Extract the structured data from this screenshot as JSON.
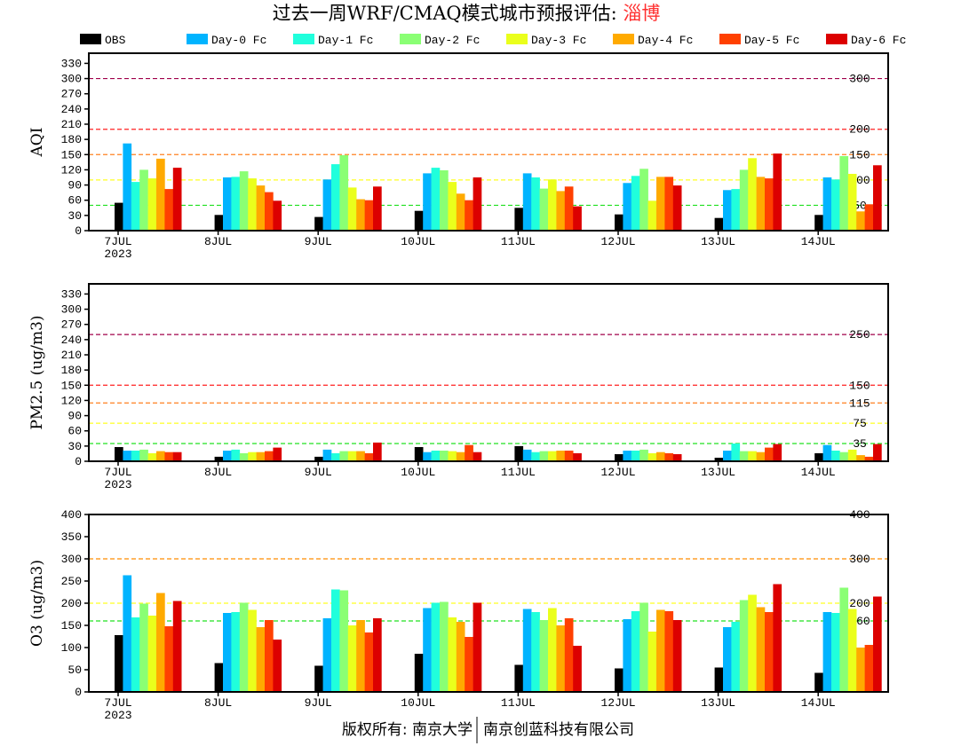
{
  "title": {
    "prefix": "过去一周WRF/CMAQ模式城市预报评估: ",
    "city": "淄博",
    "city_color": "#ff3030"
  },
  "footer": {
    "left": "版权所有: 南京大学",
    "right": "南京创蓝科技有限公司"
  },
  "chart_data": {
    "type": "bar",
    "categories": [
      "7JUL",
      "8JUL",
      "9JUL",
      "10JUL",
      "11JUL",
      "12JUL",
      "13JUL",
      "14JUL"
    ],
    "year_label": "2023",
    "legend": [
      {
        "name": "OBS",
        "color": "#000000"
      },
      {
        "name": "Day-0 Fc",
        "color": "#00b4ff"
      },
      {
        "name": "Day-1 Fc",
        "color": "#20ffdc"
      },
      {
        "name": "Day-2 Fc",
        "color": "#8aff74"
      },
      {
        "name": "Day-3 Fc",
        "color": "#eaff1c"
      },
      {
        "name": "Day-4 Fc",
        "color": "#ffaa00"
      },
      {
        "name": "Day-5 Fc",
        "color": "#ff4000"
      },
      {
        "name": "Day-6 Fc",
        "color": "#dc0000"
      }
    ],
    "legend_position": "top",
    "panels": [
      {
        "ylabel": "AQI",
        "ylim": [
          0,
          350
        ],
        "yticks": [
          0,
          30,
          60,
          90,
          120,
          150,
          180,
          210,
          240,
          270,
          300,
          330
        ],
        "thresholds": [
          {
            "value": 300,
            "label": "300",
            "color": "#a0004a"
          },
          {
            "value": 200,
            "label": "200",
            "color": "#ff2020"
          },
          {
            "value": 150,
            "label": "150",
            "color": "#ff8020"
          },
          {
            "value": 100,
            "label": "100",
            "color": "#ffff20"
          },
          {
            "value": 50,
            "label": "50",
            "color": "#20e020"
          }
        ],
        "series": [
          {
            "name": "OBS",
            "values": [
              55,
              31,
              27,
              39,
              45,
              32,
              25,
              31
            ]
          },
          {
            "name": "Day-0 Fc",
            "values": [
              172,
              105,
              101,
              113,
              113,
              94,
              80,
              105
            ]
          },
          {
            "name": "Day-1 Fc",
            "values": [
              96,
              106,
              131,
              124,
              105,
              108,
              82,
              101
            ]
          },
          {
            "name": "Day-2 Fc",
            "values": [
              120,
              117,
              149,
              119,
              83,
              122,
              120,
              147
            ]
          },
          {
            "name": "Day-3 Fc",
            "values": [
              103,
              103,
              85,
              96,
              101,
              59,
              143,
              112
            ]
          },
          {
            "name": "Day-4 Fc",
            "values": [
              142,
              89,
              62,
              73,
              78,
              106,
              106,
              38
            ]
          },
          {
            "name": "Day-5 Fc",
            "values": [
              82,
              76,
              60,
              60,
              87,
              106,
              103,
              52
            ]
          },
          {
            "name": "Day-6 Fc",
            "values": [
              124,
              59,
              87,
              105,
              48,
              89,
              152,
              129
            ]
          }
        ]
      },
      {
        "ylabel": "PM2.5 (ug/m3)",
        "ylim": [
          0,
          350
        ],
        "yticks": [
          0,
          30,
          60,
          90,
          120,
          150,
          180,
          210,
          240,
          270,
          300,
          330
        ],
        "thresholds": [
          {
            "value": 250,
            "label": "250",
            "color": "#a0004a"
          },
          {
            "value": 150,
            "label": "150",
            "color": "#ff2020"
          },
          {
            "value": 115,
            "label": "115",
            "color": "#ff8020"
          },
          {
            "value": 75,
            "label": "75",
            "color": "#ffff20"
          },
          {
            "value": 35,
            "label": "35",
            "color": "#20e020"
          }
        ],
        "series": [
          {
            "name": "OBS",
            "values": [
              28,
              9,
              9,
              28,
              30,
              14,
              7,
              16
            ]
          },
          {
            "name": "Day-0 Fc",
            "values": [
              21,
              21,
              23,
              18,
              23,
              21,
              21,
              32
            ]
          },
          {
            "name": "Day-1 Fc",
            "values": [
              21,
              23,
              16,
              21,
              18,
              21,
              35,
              21
            ]
          },
          {
            "name": "Day-2 Fc",
            "values": [
              23,
              16,
              20,
              21,
              20,
              23,
              20,
              18
            ]
          },
          {
            "name": "Day-3 Fc",
            "values": [
              16,
              18,
              20,
              20,
              20,
              16,
              20,
              23
            ]
          },
          {
            "name": "Day-4 Fc",
            "values": [
              20,
              18,
              20,
              18,
              21,
              18,
              18,
              12
            ]
          },
          {
            "name": "Day-5 Fc",
            "values": [
              18,
              20,
              16,
              32,
              21,
              16,
              27,
              9
            ]
          },
          {
            "name": "Day-6 Fc",
            "values": [
              18,
              27,
              37,
              18,
              16,
              14,
              34,
              34
            ]
          }
        ]
      },
      {
        "ylabel": "O3 (ug/m3)",
        "ylim": [
          0,
          400
        ],
        "yticks": [
          0,
          50,
          100,
          150,
          200,
          250,
          300,
          350,
          400
        ],
        "thresholds": [
          {
            "value": 400,
            "label": "400",
            "color": "#ff2020"
          },
          {
            "value": 300,
            "label": "300",
            "color": "#ff8c00"
          },
          {
            "value": 200,
            "label": "200",
            "color": "#ffff20"
          },
          {
            "value": 160,
            "label": "160",
            "color": "#20e020"
          }
        ],
        "series": [
          {
            "name": "OBS",
            "values": [
              128,
              65,
              59,
              86,
              61,
              53,
              55,
              43
            ]
          },
          {
            "name": "Day-0 Fc",
            "values": [
              263,
              178,
              166,
              189,
              187,
              164,
              146,
              180
            ]
          },
          {
            "name": "Day-1 Fc",
            "values": [
              168,
              180,
              231,
              201,
              180,
              182,
              158,
              178
            ]
          },
          {
            "name": "Day-2 Fc",
            "values": [
              199,
              201,
              229,
              203,
              162,
              201,
              207,
              235
            ]
          },
          {
            "name": "Day-3 Fc",
            "values": [
              172,
              185,
              150,
              168,
              189,
              136,
              219,
              187
            ]
          },
          {
            "name": "Day-4 Fc",
            "values": [
              223,
              146,
              162,
              158,
              150,
              185,
              191,
              100
            ]
          },
          {
            "name": "Day-5 Fc",
            "values": [
              148,
              162,
              134,
              124,
              166,
              182,
              180,
              106
            ]
          },
          {
            "name": "Day-6 Fc",
            "values": [
              205,
              118,
              166,
              201,
              104,
              162,
              243,
              215
            ]
          }
        ]
      }
    ]
  }
}
